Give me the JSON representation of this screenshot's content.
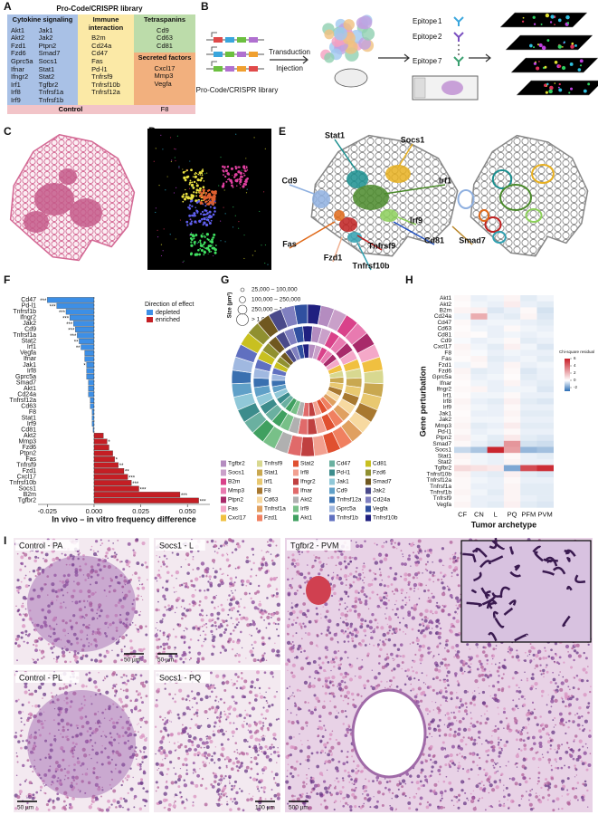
{
  "panel_labels": [
    "A",
    "B",
    "C",
    "D",
    "E",
    "F",
    "G",
    "H",
    "I"
  ],
  "library": {
    "title": "Pro-Code/CRISPR library",
    "groups": [
      {
        "name": "Cytokine signaling",
        "color": "#a9c1e6",
        "genes": [
          "Akt1",
          "Akt2",
          "Fzd1",
          "Fzd6",
          "Gprc5a",
          "Ifnar",
          "Ifngr2",
          "Irf1",
          "Irf8",
          "Irf9",
          "Jak1",
          "Jak2",
          "Ptpn2",
          "Smad7",
          "Socs1",
          "Stat1",
          "Stat2",
          "Tgfbr2",
          "Tnfrsf1a",
          "Tnfrsf1b"
        ]
      },
      {
        "name": "Immune interaction",
        "color": "#fbe9a6",
        "genes": [
          "B2m",
          "Cd24a",
          "Cd47",
          "Fas",
          "Pd-l1",
          "Tnfrsf9",
          "Tnfrsf10b",
          "Tnfrsf12a"
        ]
      },
      {
        "name": "Tetraspanins",
        "color": "#bcdcaa",
        "genes": [
          "Cd9",
          "Cd63",
          "Cd81"
        ]
      },
      {
        "name": "Secreted factors",
        "color": "#f2b07e",
        "genes": [
          "Cxcl17",
          "Mmp3",
          "Vegfa"
        ]
      }
    ],
    "control": {
      "name": "Control",
      "gene": "F8",
      "color": "#f2c4c8"
    }
  },
  "schematic": {
    "library_label": "Pro-Code/CRISPR library",
    "steps": [
      "Transduction",
      "Injection"
    ],
    "epitopes": [
      {
        "text": "Epitope",
        "number": 1,
        "color": "#3aa6dd"
      },
      {
        "text": "Epitope",
        "number": 2,
        "color": "#7a4fc0"
      },
      {
        "text": "Epitope",
        "number": 7,
        "color": "#3aa070"
      }
    ]
  },
  "map_labels": [
    {
      "text": "Stat1",
      "color": "#1a8f8f"
    },
    {
      "text": "Socs1",
      "color": "#e8b020"
    },
    {
      "text": "Cd9",
      "color": "#8fb0e0"
    },
    {
      "text": "Irf1",
      "color": "#4a8a2a"
    },
    {
      "text": "Irf9",
      "color": "#8ccf5a"
    },
    {
      "text": "Smad7",
      "color": "#b8862a"
    },
    {
      "text": "Fas",
      "color": "#e06a1a"
    },
    {
      "text": "Fzd1",
      "color": "#f0b090"
    },
    {
      "text": "Tnfrsf9",
      "color": "#c02020"
    },
    {
      "text": "Cd81",
      "color": "#2050c0"
    },
    {
      "text": "Tnfrsf10b",
      "color": "#30a0b0"
    }
  ],
  "bar_chart": {
    "type": "bar",
    "orientation": "horizontal",
    "categories": [
      "Cd47",
      "Pd-l1",
      "Tnfrsf1b",
      "Ifngr2",
      "Jak2",
      "Cd9",
      "Tnfrsf1a",
      "Stat2",
      "Irf1",
      "Vegfa",
      "Ifnar",
      "Jak1",
      "Irf8",
      "Gprc5a",
      "Smad7",
      "Akt1",
      "Cd24a",
      "Tnfrsf12a",
      "Cd63",
      "F8",
      "Stat1",
      "Irf9",
      "Cd81",
      "Akt2",
      "Mmp3",
      "Fzd6",
      "Ptpn2",
      "Fas",
      "Tnfrsf9",
      "Fzd1",
      "Cxcl17",
      "Tnfrsf10b",
      "Socs1",
      "B2m",
      "Tgfbr2"
    ],
    "values": [
      -0.025,
      -0.02,
      -0.015,
      -0.013,
      -0.011,
      -0.01,
      -0.009,
      -0.008,
      -0.007,
      -0.005,
      -0.005,
      -0.004,
      -0.004,
      -0.004,
      -0.003,
      -0.003,
      -0.003,
      -0.002,
      -0.002,
      -0.001,
      -0.001,
      -0.001,
      -0.0005,
      0.005,
      0.007,
      0.008,
      0.01,
      0.011,
      0.013,
      0.016,
      0.018,
      0.02,
      0.024,
      0.046,
      0.056
    ],
    "significance": [
      "***",
      "***",
      "***",
      "***",
      "***",
      "***",
      "***",
      "**",
      "**",
      null,
      null,
      "*",
      null,
      null,
      null,
      null,
      null,
      null,
      null,
      null,
      null,
      null,
      null,
      null,
      "*",
      null,
      null,
      "*",
      "**",
      "**",
      "***",
      "***",
      "***",
      "***",
      "***"
    ],
    "xlim": [
      -0.03,
      0.062
    ],
    "xticks": [
      -0.025,
      {
        "value": 0,
        "label": "0.000"
      },
      0.025,
      {
        "value": 0.05,
        "label": "0.050"
      }
    ],
    "xlabel": "In vivo – in vitro frequency difference",
    "legend": {
      "title": "Direction of effect",
      "items": [
        {
          "name": "depleted",
          "color": "#3d8fe6"
        },
        {
          "name": "enriched",
          "color": "#c41e24"
        }
      ]
    }
  },
  "sunburst": {
    "size_title": "Size (µm²)",
    "size_classes": [
      "25,000 – 100,000",
      "100,000 – 250,000",
      "250,000 – 1,000,000",
      "> 1,000,000"
    ],
    "genes": [
      {
        "name": "Tgfbr2",
        "color": "#b48cc0"
      },
      {
        "name": "Socs1",
        "color": "#c9a0c9"
      },
      {
        "name": "B2m",
        "color": "#d9428a"
      },
      {
        "name": "Mmp3",
        "color": "#e87ab0"
      },
      {
        "name": "Ptpn2",
        "color": "#a82a6a"
      },
      {
        "name": "Fas",
        "color": "#f4a8c8"
      },
      {
        "name": "Cxcl17",
        "color": "#f0c040"
      },
      {
        "name": "Tnfrsf9",
        "color": "#d8d890"
      },
      {
        "name": "Stat1",
        "color": "#c9a850"
      },
      {
        "name": "Irf1",
        "color": "#e8c870"
      },
      {
        "name": "F8",
        "color": "#a87830"
      },
      {
        "name": "Cd63",
        "color": "#f7d9a0"
      },
      {
        "name": "Tnfrsf1a",
        "color": "#e0a060"
      },
      {
        "name": "Fzd1",
        "color": "#f08060"
      },
      {
        "name": "Stat2",
        "color": "#e05030"
      },
      {
        "name": "Irf8",
        "color": "#f2a090"
      },
      {
        "name": "Ifngr2",
        "color": "#c04040"
      },
      {
        "name": "Ifnar",
        "color": "#e06a6a"
      },
      {
        "name": "Akt2",
        "color": "#b0b0b0"
      },
      {
        "name": "Irf9",
        "color": "#78c088"
      },
      {
        "name": "Akt1",
        "color": "#40a060"
      },
      {
        "name": "Cd47",
        "color": "#6ab0a0"
      },
      {
        "name": "Pd-l1",
        "color": "#3c8c8c"
      },
      {
        "name": "Jak1",
        "color": "#90c8d8"
      },
      {
        "name": "Cd9",
        "color": "#60a0c8"
      },
      {
        "name": "Tnfrsf12a",
        "color": "#3a70b0"
      },
      {
        "name": "Gprc5a",
        "color": "#a0b8e0"
      },
      {
        "name": "Tnfrsf1b",
        "color": "#6070c0"
      },
      {
        "name": "Cd81",
        "color": "#c8c020"
      },
      {
        "name": "Fzd6",
        "color": "#909030"
      },
      {
        "name": "Smad7",
        "color": "#705820"
      },
      {
        "name": "Jak2",
        "color": "#4a4a8a"
      },
      {
        "name": "Cd24a",
        "color": "#8080c0"
      },
      {
        "name": "Vegfa",
        "color": "#3050a0"
      },
      {
        "name": "Tnfrsf10b",
        "color": "#202080"
      }
    ]
  },
  "heatmap": {
    "rows": [
      "Akt1",
      "Akt2",
      "B2m",
      "Cd24a",
      "Cd47",
      "Cd63",
      "Cd81",
      "Cd9",
      "Cxcl17",
      "F8",
      "Fas",
      "Fzd1",
      "Fzd6",
      "Gprc5a",
      "Ifnar",
      "Ifngr2",
      "Irf1",
      "Irf8",
      "Irf9",
      "Jak1",
      "Jak2",
      "Mmp3",
      "Pd-l1",
      "Ptpn2",
      "Smad7",
      "Socs1",
      "Stat1",
      "Stat2",
      "Tgfbr2",
      "Tnfrsf10b",
      "Tnfrsf12a",
      "Tnfrsf1a",
      "Tnfrsf1b",
      "Tnfrsf9",
      "Vegfa"
    ],
    "columns": [
      "CF",
      "CN",
      "L",
      "PQ",
      "PFM",
      "PVM"
    ],
    "values": [
      [
        0.2,
        -0.3,
        -0.2,
        0.3,
        -0.4,
        -0.2
      ],
      [
        0.1,
        -0.2,
        -0.3,
        0.5,
        -0.3,
        -0.4
      ],
      [
        0.3,
        0.4,
        -0.5,
        -0.3,
        0.2,
        -0.6
      ],
      [
        -0.2,
        2.2,
        -0.3,
        -0.4,
        0.3,
        -0.5
      ],
      [
        0.2,
        -0.3,
        -0.2,
        -0.2,
        -0.3,
        -0.4
      ],
      [
        0.1,
        -0.2,
        -0.3,
        0.2,
        -0.2,
        -0.3
      ],
      [
        0.2,
        0.1,
        -0.3,
        -0.2,
        -0.3,
        -0.2
      ],
      [
        -0.1,
        -0.3,
        -0.2,
        0.2,
        -0.4,
        -0.3
      ],
      [
        0.3,
        -0.2,
        -0.4,
        0.4,
        -0.2,
        -0.5
      ],
      [
        0.2,
        -0.1,
        -0.3,
        -0.2,
        -0.3,
        -0.3
      ],
      [
        0.1,
        0.3,
        -0.4,
        -0.3,
        -0.2,
        -0.4
      ],
      [
        -0.2,
        0.2,
        -0.3,
        0.3,
        -0.3,
        -0.2
      ],
      [
        0.3,
        -0.4,
        -0.3,
        0.2,
        -0.5,
        -0.3
      ],
      [
        0.2,
        -0.3,
        -0.2,
        0.1,
        -0.4,
        -0.3
      ],
      [
        0.1,
        -0.2,
        -0.3,
        0.3,
        -0.3,
        -0.4
      ],
      [
        0.2,
        0.3,
        -0.3,
        -0.2,
        -0.2,
        -0.5
      ],
      [
        0.1,
        -0.2,
        -0.2,
        0.2,
        -0.3,
        -0.3
      ],
      [
        0.3,
        -0.3,
        -0.4,
        0.4,
        -0.4,
        -0.5
      ],
      [
        0.2,
        -0.2,
        -0.3,
        0.2,
        -0.3,
        -0.3
      ],
      [
        0.1,
        -0.3,
        -0.3,
        0.3,
        -0.4,
        -0.4
      ],
      [
        0.2,
        -0.2,
        -0.2,
        0.2,
        -0.3,
        -0.3
      ],
      [
        0.3,
        -0.4,
        -0.3,
        0.5,
        -0.4,
        -0.4
      ],
      [
        0.2,
        -0.3,
        -0.2,
        0.2,
        -0.3,
        -0.3
      ],
      [
        0.4,
        -0.2,
        -0.4,
        0.6,
        -0.4,
        -0.5
      ],
      [
        0.2,
        -0.3,
        -0.5,
        2.8,
        -0.6,
        -0.7
      ],
      [
        -0.8,
        -1.2,
        5.8,
        2.6,
        -1.5,
        -1.3
      ],
      [
        0.3,
        -0.2,
        -0.3,
        0.2,
        -0.3,
        -0.4
      ],
      [
        0.2,
        -0.2,
        -0.3,
        0.3,
        -0.3,
        -0.3
      ],
      [
        1.0,
        0.8,
        0.6,
        -1.8,
        4.8,
        5.6
      ],
      [
        0.3,
        -0.3,
        -0.4,
        0.4,
        -0.4,
        -0.5
      ],
      [
        0.2,
        -0.2,
        -0.3,
        0.2,
        -0.3,
        -0.3
      ],
      [
        0.2,
        -0.3,
        -0.3,
        0.3,
        -0.4,
        -0.4
      ],
      [
        0.3,
        -0.2,
        -0.4,
        0.3,
        -0.4,
        -0.4
      ],
      [
        0.2,
        -0.3,
        -0.3,
        0.3,
        -0.3,
        -0.4
      ],
      [
        0.3,
        -0.3,
        -0.4,
        0.4,
        -0.4,
        -0.5
      ]
    ],
    "clim": [
      -3,
      6
    ],
    "colorbar_ticks": [
      -2,
      0,
      2,
      4,
      6
    ],
    "colorbar_title": "Chi-square residual",
    "low_color": "#2a6db5",
    "high_color": "#c81e28",
    "ylabel": "Gene perturbation",
    "xlabel": "Tumor archetype"
  },
  "histology": [
    {
      "label": "Control - PA",
      "scale": "50 µm"
    },
    {
      "label": "Socs1 - L",
      "scale": "50 µm"
    },
    {
      "label": "Tgfbr2 - PVM",
      "scale": "500 µm"
    },
    {
      "label": "Control - PL",
      "scale": "50 µm"
    },
    {
      "label": "Socs1 - PQ",
      "scale": "100 µm"
    }
  ]
}
